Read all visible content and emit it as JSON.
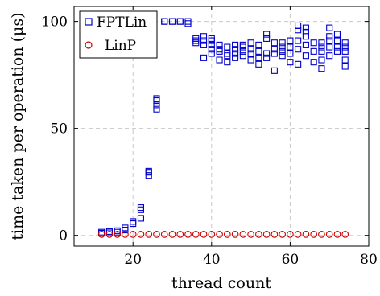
{
  "chart_data": {
    "type": "scatter",
    "xlabel": "thread count",
    "ylabel": "time taken per operation (μs)",
    "xlim": [
      5,
      80
    ],
    "ylim": [
      -5,
      107
    ],
    "xticks": [
      20,
      40,
      60,
      80
    ],
    "yticks": [
      0,
      50,
      100
    ],
    "grid": true,
    "legend_position": "top-left",
    "series": [
      {
        "name": "FPTLin",
        "marker": "square",
        "color": "#0000cc",
        "points": [
          [
            12,
            1
          ],
          [
            12,
            1.5
          ],
          [
            14,
            1.2
          ],
          [
            14,
            1.8
          ],
          [
            16,
            1.5
          ],
          [
            16,
            2.2
          ],
          [
            18,
            2.5
          ],
          [
            18,
            3.5
          ],
          [
            20,
            5.5
          ],
          [
            20,
            6.5
          ],
          [
            22,
            8
          ],
          [
            22,
            12
          ],
          [
            22,
            13
          ],
          [
            24,
            28
          ],
          [
            24,
            29.5
          ],
          [
            24,
            30
          ],
          [
            26,
            59
          ],
          [
            26,
            61
          ],
          [
            26,
            63
          ],
          [
            26,
            64
          ],
          [
            28,
            100
          ],
          [
            28,
            100
          ],
          [
            30,
            100
          ],
          [
            30,
            100
          ],
          [
            32,
            100
          ],
          [
            32,
            100
          ],
          [
            34,
            99
          ],
          [
            34,
            100
          ],
          [
            36,
            90
          ],
          [
            36,
            91
          ],
          [
            36,
            92
          ],
          [
            38,
            83
          ],
          [
            38,
            89
          ],
          [
            38,
            91
          ],
          [
            38,
            93
          ],
          [
            40,
            85
          ],
          [
            40,
            87
          ],
          [
            40,
            89
          ],
          [
            40,
            91
          ],
          [
            40,
            92
          ],
          [
            42,
            82
          ],
          [
            42,
            86
          ],
          [
            42,
            87
          ],
          [
            42,
            89
          ],
          [
            44,
            81
          ],
          [
            44,
            84
          ],
          [
            44,
            85
          ],
          [
            44,
            88
          ],
          [
            46,
            83
          ],
          [
            46,
            85
          ],
          [
            46,
            87
          ],
          [
            46,
            89
          ],
          [
            48,
            84
          ],
          [
            48,
            86
          ],
          [
            48,
            88
          ],
          [
            48,
            89
          ],
          [
            50,
            82
          ],
          [
            50,
            85
          ],
          [
            50,
            87
          ],
          [
            50,
            90
          ],
          [
            52,
            80
          ],
          [
            52,
            83
          ],
          [
            52,
            86
          ],
          [
            52,
            89
          ],
          [
            54,
            83
          ],
          [
            54,
            85
          ],
          [
            54,
            92
          ],
          [
            54,
            94
          ],
          [
            56,
            77
          ],
          [
            56,
            85
          ],
          [
            56,
            87
          ],
          [
            56,
            90
          ],
          [
            58,
            84
          ],
          [
            58,
            86
          ],
          [
            58,
            88
          ],
          [
            58,
            90
          ],
          [
            60,
            81
          ],
          [
            60,
            85
          ],
          [
            60,
            88
          ],
          [
            60,
            91
          ],
          [
            62,
            80
          ],
          [
            62,
            87
          ],
          [
            62,
            91
          ],
          [
            62,
            96
          ],
          [
            62,
            98
          ],
          [
            64,
            84
          ],
          [
            64,
            89
          ],
          [
            64,
            93
          ],
          [
            64,
            95
          ],
          [
            64,
            97
          ],
          [
            66,
            81
          ],
          [
            66,
            86
          ],
          [
            66,
            90
          ],
          [
            68,
            78
          ],
          [
            68,
            82
          ],
          [
            68,
            86
          ],
          [
            68,
            88
          ],
          [
            68,
            90
          ],
          [
            70,
            84
          ],
          [
            70,
            88
          ],
          [
            70,
            91
          ],
          [
            70,
            93
          ],
          [
            70,
            97
          ],
          [
            72,
            86
          ],
          [
            72,
            88
          ],
          [
            72,
            91
          ],
          [
            72,
            94
          ],
          [
            74,
            79
          ],
          [
            74,
            82
          ],
          [
            74,
            86
          ],
          [
            74,
            88
          ],
          [
            74,
            90
          ]
        ]
      },
      {
        "name": "LinP",
        "marker": "circle",
        "color": "#cc0000",
        "points": [
          [
            12,
            0.5
          ],
          [
            14,
            0.5
          ],
          [
            16,
            0.5
          ],
          [
            18,
            0.5
          ],
          [
            20,
            0.5
          ],
          [
            22,
            0.5
          ],
          [
            24,
            0.5
          ],
          [
            26,
            0.5
          ],
          [
            28,
            0.5
          ],
          [
            30,
            0.5
          ],
          [
            32,
            0.5
          ],
          [
            34,
            0.5
          ],
          [
            36,
            0.5
          ],
          [
            38,
            0.5
          ],
          [
            40,
            0.5
          ],
          [
            42,
            0.5
          ],
          [
            44,
            0.5
          ],
          [
            46,
            0.5
          ],
          [
            48,
            0.5
          ],
          [
            50,
            0.5
          ],
          [
            52,
            0.5
          ],
          [
            54,
            0.5
          ],
          [
            56,
            0.5
          ],
          [
            58,
            0.5
          ],
          [
            60,
            0.5
          ],
          [
            62,
            0.5
          ],
          [
            64,
            0.5
          ],
          [
            66,
            0.5
          ],
          [
            68,
            0.5
          ],
          [
            70,
            0.5
          ],
          [
            72,
            0.5
          ],
          [
            74,
            0.5
          ]
        ]
      }
    ]
  }
}
